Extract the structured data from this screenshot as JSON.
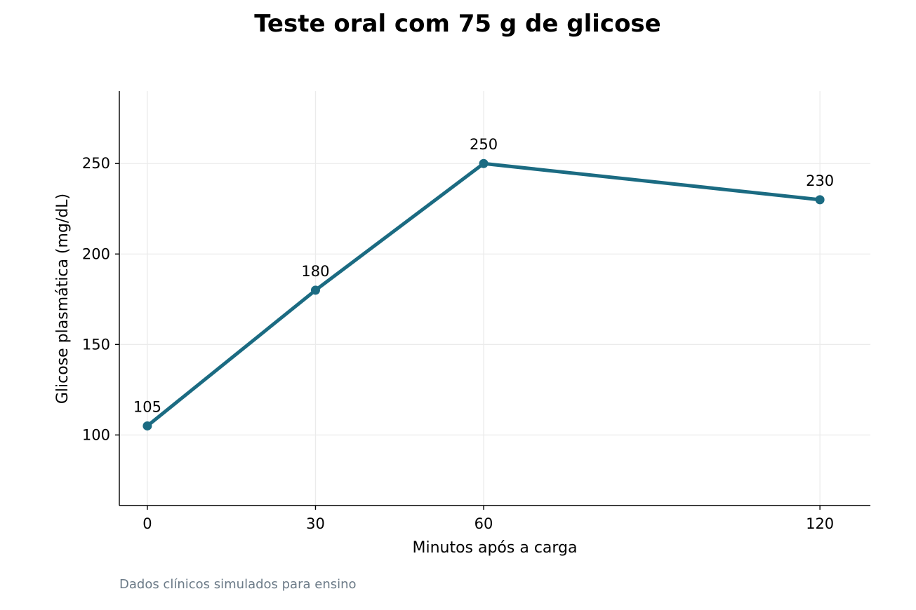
{
  "chart_data": {
    "type": "line",
    "title": "Teste oral com 75 g de glicose",
    "xlabel": "Minutos após a carga",
    "ylabel": "Glicose plasmática (mg/dL)",
    "caption": "Dados clínicos simulados para ensino",
    "x": [
      0,
      30,
      60,
      120
    ],
    "series": [
      {
        "values": [
          105,
          180,
          250,
          230
        ],
        "data_labels": [
          "105",
          "180",
          "250",
          "230"
        ]
      }
    ],
    "xticks": [
      0,
      30,
      60,
      120
    ],
    "xtick_labels": [
      "0",
      "30",
      "60",
      "120"
    ],
    "yticks": [
      100,
      150,
      200,
      250
    ],
    "ytick_labels": [
      "100",
      "150",
      "200",
      "250"
    ],
    "xlim": [
      -5,
      129
    ],
    "ylim": [
      61,
      290
    ],
    "grid": true,
    "colors": {
      "line": "#1b6b82",
      "grid": "#ebebeb",
      "caption": "#6b7a87"
    }
  }
}
